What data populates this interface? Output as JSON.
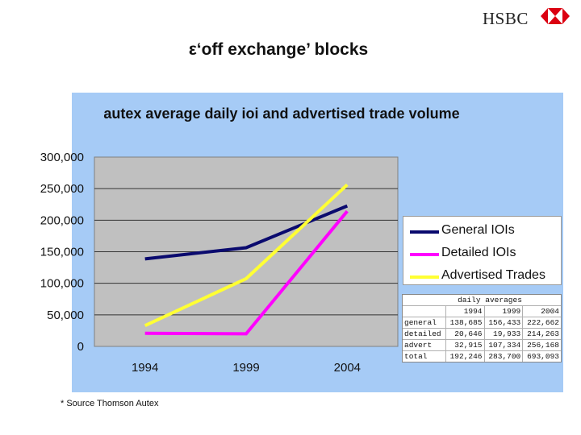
{
  "brand": {
    "name": "HSBC",
    "icon": "hsbc-hexagon-logo-icon",
    "color": "#db0011"
  },
  "slide_title": "ε‘off exchange’ blocks",
  "source_note": "* Source Thomson Autex",
  "chart_data": {
    "type": "line",
    "title": "autex average daily ioi and advertised trade volume",
    "xlabel": "",
    "ylabel": "",
    "categories": [
      "1994",
      "1999",
      "2004"
    ],
    "ylim": [
      0,
      300000
    ],
    "yticks": [
      "0",
      "50,000",
      "100,000",
      "150,000",
      "200,000",
      "250,000",
      "300,000"
    ],
    "grid": true,
    "legend_position": "right",
    "plot_background": "#c0c0c0",
    "panel_background": "#a6cbf6",
    "series": [
      {
        "name": "General IOIs",
        "color": "#0a0a6e",
        "values": [
          138685,
          156433,
          222662
        ]
      },
      {
        "name": "Detailed IOIs",
        "color": "#ff00ff",
        "values": [
          20646,
          19933,
          214263
        ]
      },
      {
        "name": "Advertised Trades",
        "color": "#ffff33",
        "values": [
          32915,
          107334,
          256168
        ]
      }
    ]
  },
  "data_table": {
    "caption": "daily averages",
    "columns": [
      "",
      "1994",
      "1999",
      "2004"
    ],
    "rows": [
      [
        "general",
        "138,685",
        "156,433",
        "222,662"
      ],
      [
        "detailed",
        "20,646",
        "19,933",
        "214,263"
      ],
      [
        "advert",
        "32,915",
        "107,334",
        "256,168"
      ],
      [
        "total",
        "192,246",
        "283,700",
        "693,093"
      ]
    ]
  }
}
